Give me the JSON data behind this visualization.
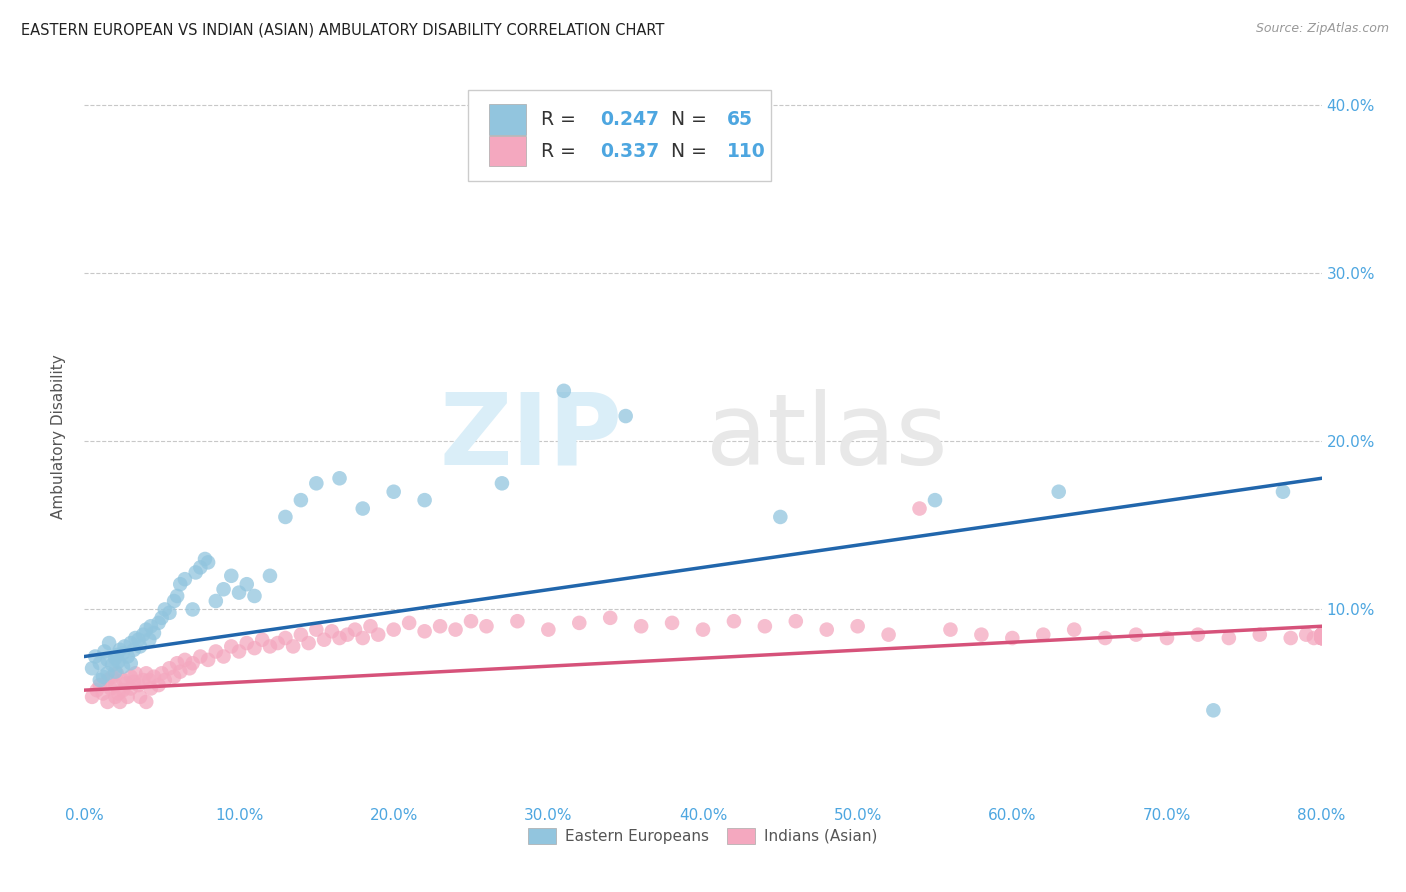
{
  "title": "EASTERN EUROPEAN VS INDIAN (ASIAN) AMBULATORY DISABILITY CORRELATION CHART",
  "source": "Source: ZipAtlas.com",
  "ylabel": "Ambulatory Disability",
  "watermark_zip": "ZIP",
  "watermark_atlas": "atlas",
  "xlim": [
    0.0,
    0.8
  ],
  "ylim": [
    -0.015,
    0.42
  ],
  "yticks": [
    0.1,
    0.2,
    0.3,
    0.4
  ],
  "ytick_labels": [
    "10.0%",
    "20.0%",
    "30.0%",
    "40.0%"
  ],
  "xticks": [
    0.0,
    0.1,
    0.2,
    0.3,
    0.4,
    0.5,
    0.6,
    0.7,
    0.8
  ],
  "xtick_labels": [
    "0.0%",
    "10.0%",
    "20.0%",
    "30.0%",
    "40.0%",
    "50.0%",
    "60.0%",
    "70.0%",
    "80.0%"
  ],
  "blue_R": 0.247,
  "blue_N": 65,
  "pink_R": 0.337,
  "pink_N": 110,
  "blue_color": "#92c5de",
  "pink_color": "#f4a8bf",
  "blue_line_color": "#2166ac",
  "pink_line_color": "#d6527a",
  "legend_label_blue": "Eastern Europeans",
  "legend_label_pink": "Indians (Asian)",
  "background_color": "#ffffff",
  "grid_color": "#c8c8c8",
  "tick_color": "#4da6e0",
  "number_color": "#4da6e0",
  "blue_x": [
    0.005,
    0.007,
    0.01,
    0.01,
    0.012,
    0.013,
    0.015,
    0.015,
    0.016,
    0.018,
    0.02,
    0.02,
    0.021,
    0.022,
    0.023,
    0.025,
    0.025,
    0.026,
    0.028,
    0.03,
    0.03,
    0.032,
    0.033,
    0.035,
    0.036,
    0.038,
    0.04,
    0.042,
    0.043,
    0.045,
    0.048,
    0.05,
    0.052,
    0.055,
    0.058,
    0.06,
    0.062,
    0.065,
    0.07,
    0.072,
    0.075,
    0.078,
    0.08,
    0.085,
    0.09,
    0.095,
    0.1,
    0.105,
    0.11,
    0.12,
    0.13,
    0.14,
    0.15,
    0.165,
    0.18,
    0.2,
    0.22,
    0.27,
    0.31,
    0.35,
    0.45,
    0.55,
    0.63,
    0.73,
    0.775
  ],
  "blue_y": [
    0.065,
    0.072,
    0.058,
    0.068,
    0.06,
    0.075,
    0.07,
    0.062,
    0.08,
    0.067,
    0.071,
    0.063,
    0.073,
    0.069,
    0.076,
    0.074,
    0.066,
    0.078,
    0.072,
    0.08,
    0.068,
    0.076,
    0.083,
    0.082,
    0.078,
    0.085,
    0.088,
    0.082,
    0.09,
    0.086,
    0.092,
    0.095,
    0.1,
    0.098,
    0.105,
    0.108,
    0.115,
    0.118,
    0.1,
    0.122,
    0.125,
    0.13,
    0.128,
    0.105,
    0.112,
    0.12,
    0.11,
    0.115,
    0.108,
    0.12,
    0.155,
    0.165,
    0.175,
    0.178,
    0.16,
    0.17,
    0.165,
    0.175,
    0.23,
    0.215,
    0.155,
    0.165,
    0.17,
    0.04,
    0.17
  ],
  "pink_x": [
    0.005,
    0.008,
    0.01,
    0.012,
    0.015,
    0.015,
    0.017,
    0.018,
    0.02,
    0.02,
    0.021,
    0.022,
    0.023,
    0.025,
    0.025,
    0.027,
    0.028,
    0.03,
    0.03,
    0.032,
    0.033,
    0.035,
    0.036,
    0.038,
    0.04,
    0.04,
    0.042,
    0.043,
    0.045,
    0.048,
    0.05,
    0.052,
    0.055,
    0.058,
    0.06,
    0.062,
    0.065,
    0.068,
    0.07,
    0.075,
    0.08,
    0.085,
    0.09,
    0.095,
    0.1,
    0.105,
    0.11,
    0.115,
    0.12,
    0.125,
    0.13,
    0.135,
    0.14,
    0.145,
    0.15,
    0.155,
    0.16,
    0.165,
    0.17,
    0.175,
    0.18,
    0.185,
    0.19,
    0.2,
    0.21,
    0.22,
    0.23,
    0.24,
    0.25,
    0.26,
    0.28,
    0.3,
    0.32,
    0.34,
    0.36,
    0.38,
    0.4,
    0.42,
    0.44,
    0.46,
    0.48,
    0.5,
    0.52,
    0.54,
    0.56,
    0.58,
    0.6,
    0.62,
    0.64,
    0.66,
    0.68,
    0.7,
    0.72,
    0.74,
    0.76,
    0.78,
    0.79,
    0.795,
    0.8,
    0.8,
    0.8,
    0.8,
    0.8,
    0.8,
    0.8,
    0.8,
    0.8,
    0.8,
    0.8,
    0.8
  ],
  "pink_y": [
    0.048,
    0.052,
    0.055,
    0.05,
    0.058,
    0.045,
    0.053,
    0.06,
    0.055,
    0.048,
    0.062,
    0.05,
    0.045,
    0.058,
    0.052,
    0.056,
    0.048,
    0.06,
    0.053,
    0.057,
    0.062,
    0.055,
    0.048,
    0.058,
    0.062,
    0.045,
    0.058,
    0.053,
    0.06,
    0.055,
    0.062,
    0.058,
    0.065,
    0.06,
    0.068,
    0.063,
    0.07,
    0.065,
    0.068,
    0.072,
    0.07,
    0.075,
    0.072,
    0.078,
    0.075,
    0.08,
    0.077,
    0.082,
    0.078,
    0.08,
    0.083,
    0.078,
    0.085,
    0.08,
    0.088,
    0.082,
    0.087,
    0.083,
    0.085,
    0.088,
    0.083,
    0.09,
    0.085,
    0.088,
    0.092,
    0.087,
    0.09,
    0.088,
    0.093,
    0.09,
    0.093,
    0.088,
    0.092,
    0.095,
    0.09,
    0.092,
    0.088,
    0.093,
    0.09,
    0.093,
    0.088,
    0.09,
    0.085,
    0.16,
    0.088,
    0.085,
    0.083,
    0.085,
    0.088,
    0.083,
    0.085,
    0.083,
    0.085,
    0.083,
    0.085,
    0.083,
    0.085,
    0.083,
    0.085,
    0.083,
    0.085,
    0.083,
    0.085,
    0.083,
    0.085,
    0.083,
    0.085,
    0.083,
    0.085,
    0.083
  ],
  "blue_line_x0": 0.0,
  "blue_line_y0": 0.072,
  "blue_line_x1": 0.8,
  "blue_line_y1": 0.178,
  "pink_line_x0": 0.0,
  "pink_line_y0": 0.052,
  "pink_line_x1": 0.8,
  "pink_line_y1": 0.09
}
